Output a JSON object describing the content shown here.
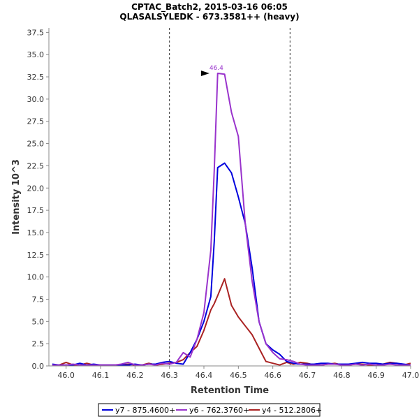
{
  "chart_data": {
    "type": "line",
    "title": "CPTAC_Batch2, 2015-03-16 06:05",
    "subtitle": "QLASALSYLEDK - 673.3581++ (heavy)",
    "xlabel": "Retention Time",
    "ylabel": "Intensity 10^3",
    "xlim": [
      45.95,
      47.0
    ],
    "ylim": [
      0,
      38.0
    ],
    "x_ticks": [
      "46.0",
      "46.1",
      "46.2",
      "46.3",
      "46.4",
      "46.5",
      "46.6",
      "46.7",
      "46.8",
      "46.9",
      "47.0"
    ],
    "y_ticks": [
      "0.0",
      "2.5",
      "5.0",
      "7.5",
      "10.0",
      "12.5",
      "15.0",
      "17.5",
      "20.0",
      "22.5",
      "25.0",
      "27.5",
      "30.0",
      "32.5",
      "35.0",
      "37.5"
    ],
    "vlines": [
      46.3,
      46.65
    ],
    "grid": false,
    "legend_position": "bottom",
    "annotation": {
      "text": "46.4",
      "x": 46.42,
      "y": 32.9,
      "color": "#9933cc"
    },
    "series": [
      {
        "name": "y7 - 875.4600+",
        "color": "#0000dd",
        "x": [
          45.96,
          45.98,
          46.0,
          46.02,
          46.04,
          46.06,
          46.08,
          46.1,
          46.12,
          46.14,
          46.16,
          46.18,
          46.2,
          46.22,
          46.24,
          46.26,
          46.28,
          46.3,
          46.32,
          46.34,
          46.36,
          46.38,
          46.4,
          46.42,
          46.43,
          46.44,
          46.46,
          46.48,
          46.5,
          46.52,
          46.54,
          46.56,
          46.58,
          46.6,
          46.62,
          46.64,
          46.66,
          46.68,
          46.7,
          46.72,
          46.74,
          46.76,
          46.78,
          46.8,
          46.82,
          46.84,
          46.86,
          46.88,
          46.9,
          46.92,
          46.94,
          46.96,
          46.98,
          47.0
        ],
        "y": [
          0.2,
          0.1,
          0.1,
          0.1,
          0.3,
          0.1,
          0.2,
          0.1,
          0.1,
          0.1,
          0.1,
          0.1,
          0.2,
          0.1,
          0.2,
          0.2,
          0.4,
          0.5,
          0.3,
          0.2,
          1.5,
          3.0,
          5.0,
          7.8,
          14.0,
          22.3,
          22.8,
          21.7,
          19.0,
          16.0,
          11.0,
          5.0,
          2.5,
          1.8,
          1.3,
          0.5,
          0.3,
          0.2,
          0.2,
          0.2,
          0.3,
          0.3,
          0.2,
          0.2,
          0.2,
          0.3,
          0.4,
          0.3,
          0.3,
          0.2,
          0.3,
          0.3,
          0.2,
          0.1
        ]
      },
      {
        "name": "y6 - 762.3760+",
        "color": "#9933cc",
        "x": [
          45.96,
          45.98,
          46.0,
          46.02,
          46.04,
          46.06,
          46.08,
          46.1,
          46.12,
          46.14,
          46.16,
          46.18,
          46.2,
          46.22,
          46.24,
          46.26,
          46.28,
          46.3,
          46.32,
          46.34,
          46.36,
          46.38,
          46.4,
          46.42,
          46.43,
          46.44,
          46.46,
          46.48,
          46.5,
          46.52,
          46.54,
          46.56,
          46.58,
          46.6,
          46.62,
          46.64,
          46.66,
          46.68,
          46.7,
          46.72,
          46.74,
          46.76,
          46.78,
          46.8,
          46.82,
          46.84,
          46.86,
          46.88,
          46.9,
          46.92,
          46.94,
          46.96,
          46.98,
          47.0
        ],
        "y": [
          0.1,
          0.1,
          0.1,
          0.2,
          0.1,
          0.1,
          0.1,
          0.1,
          0.1,
          0.1,
          0.2,
          0.4,
          0.1,
          0.1,
          0.2,
          0.1,
          0.3,
          0.2,
          0.4,
          1.5,
          1.0,
          3.0,
          6.0,
          13.0,
          22.0,
          32.9,
          32.8,
          28.5,
          25.8,
          16.0,
          9.5,
          5.0,
          2.5,
          1.5,
          0.8,
          0.7,
          0.5,
          0.2,
          0.1,
          0.1,
          0.1,
          0.2,
          0.2,
          0.1,
          0.1,
          0.2,
          0.1,
          0.2,
          0.1,
          0.1,
          0.2,
          0.1,
          0.1,
          0.1
        ]
      },
      {
        "name": "y4 - 512.2806+",
        "color": "#aa2222",
        "x": [
          45.96,
          45.98,
          46.0,
          46.02,
          46.04,
          46.06,
          46.08,
          46.1,
          46.12,
          46.14,
          46.16,
          46.18,
          46.2,
          46.22,
          46.24,
          46.26,
          46.28,
          46.3,
          46.32,
          46.34,
          46.36,
          46.38,
          46.4,
          46.42,
          46.43,
          46.44,
          46.46,
          46.48,
          46.5,
          46.52,
          46.54,
          46.56,
          46.58,
          46.6,
          46.62,
          46.64,
          46.66,
          46.68,
          46.7,
          46.72,
          46.74,
          46.76,
          46.78,
          46.8,
          46.82,
          46.84,
          46.86,
          46.88,
          46.9,
          46.92,
          46.94,
          46.96,
          46.98,
          47.0
        ],
        "y": [
          0.1,
          0.1,
          0.4,
          0.1,
          0.1,
          0.3,
          0.1,
          0.1,
          0.1,
          0.1,
          0.1,
          0.2,
          0.1,
          0.1,
          0.3,
          0.1,
          0.2,
          0.3,
          0.4,
          0.7,
          1.5,
          2.2,
          4.0,
          6.3,
          7.0,
          7.9,
          9.8,
          6.8,
          5.5,
          4.5,
          3.5,
          2.0,
          0.5,
          0.3,
          0.1,
          0.4,
          0.2,
          0.4,
          0.3,
          0.1,
          0.1,
          0.2,
          0.3,
          0.1,
          0.1,
          0.2,
          0.2,
          0.1,
          0.1,
          0.2,
          0.4,
          0.3,
          0.1,
          0.3
        ]
      }
    ]
  }
}
